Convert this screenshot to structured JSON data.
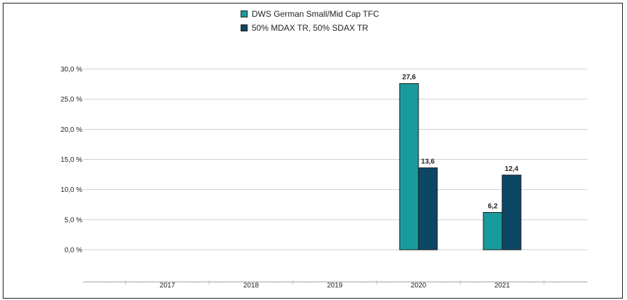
{
  "colors": {
    "series1": "#1a9b9b",
    "series2": "#0d4766"
  },
  "chart_data": {
    "type": "bar",
    "categories": [
      "2017",
      "2018",
      "2019",
      "2020",
      "2021"
    ],
    "series": [
      {
        "name": "DWS German Small/Mid Cap  TFC",
        "values": [
          null,
          null,
          null,
          27.6,
          6.2
        ],
        "labels": [
          "",
          "",
          "",
          "27,6",
          "6,2"
        ]
      },
      {
        "name": "50% MDAX TR, 50% SDAX TR",
        "values": [
          null,
          null,
          null,
          13.6,
          12.4
        ],
        "labels": [
          "",
          "",
          "",
          "13,6",
          "12,4"
        ]
      }
    ],
    "ylim": [
      0,
      30
    ],
    "yticks": [
      0,
      5,
      10,
      15,
      20,
      25,
      30
    ],
    "ytick_labels": [
      "0,0 %",
      "5,0 %",
      "10,0 %",
      "15,0 %",
      "20,0 %",
      "25,0 %",
      "30,0 %"
    ],
    "grid": true,
    "legend_position": "top-center",
    "title": "",
    "xlabel": "",
    "ylabel": ""
  }
}
